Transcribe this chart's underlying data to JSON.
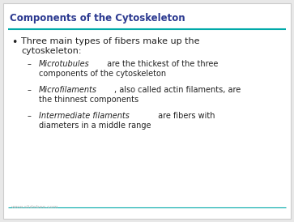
{
  "title": "Components of the Cytoskeleton",
  "title_color": "#2B3990",
  "title_fontsize": 8.5,
  "line_color": "#00A9A9",
  "background_color": "#E8E8E8",
  "slide_bg": "#FFFFFF",
  "bullet_line1": "Three main types of fibers make up the",
  "bullet_line2": "cytoskeleton:",
  "bullet_color": "#222222",
  "bullet_fontsize": 8.0,
  "sub_bullet_fontsize": 7.0,
  "sub_bullet_color": "#222222",
  "sub_bullets": [
    {
      "italic_part": "Microtubules",
      "normal_part1": " are the thickest of the three",
      "normal_part2": "components of the cytoskeleton"
    },
    {
      "italic_part": "Microfilaments",
      "normal_part1": ", also called actin filaments, are",
      "normal_part2": "the thinnest components"
    },
    {
      "italic_part": "Intermediate filaments",
      "normal_part1": " are fibers with",
      "normal_part2": "diameters in a middle range"
    }
  ],
  "watermark": "www.slidebee.com",
  "watermark_color": "#BBBBBB",
  "watermark_fontsize": 4.5,
  "border_color": "#CCCCCC",
  "line2_color": "#00A9A9"
}
